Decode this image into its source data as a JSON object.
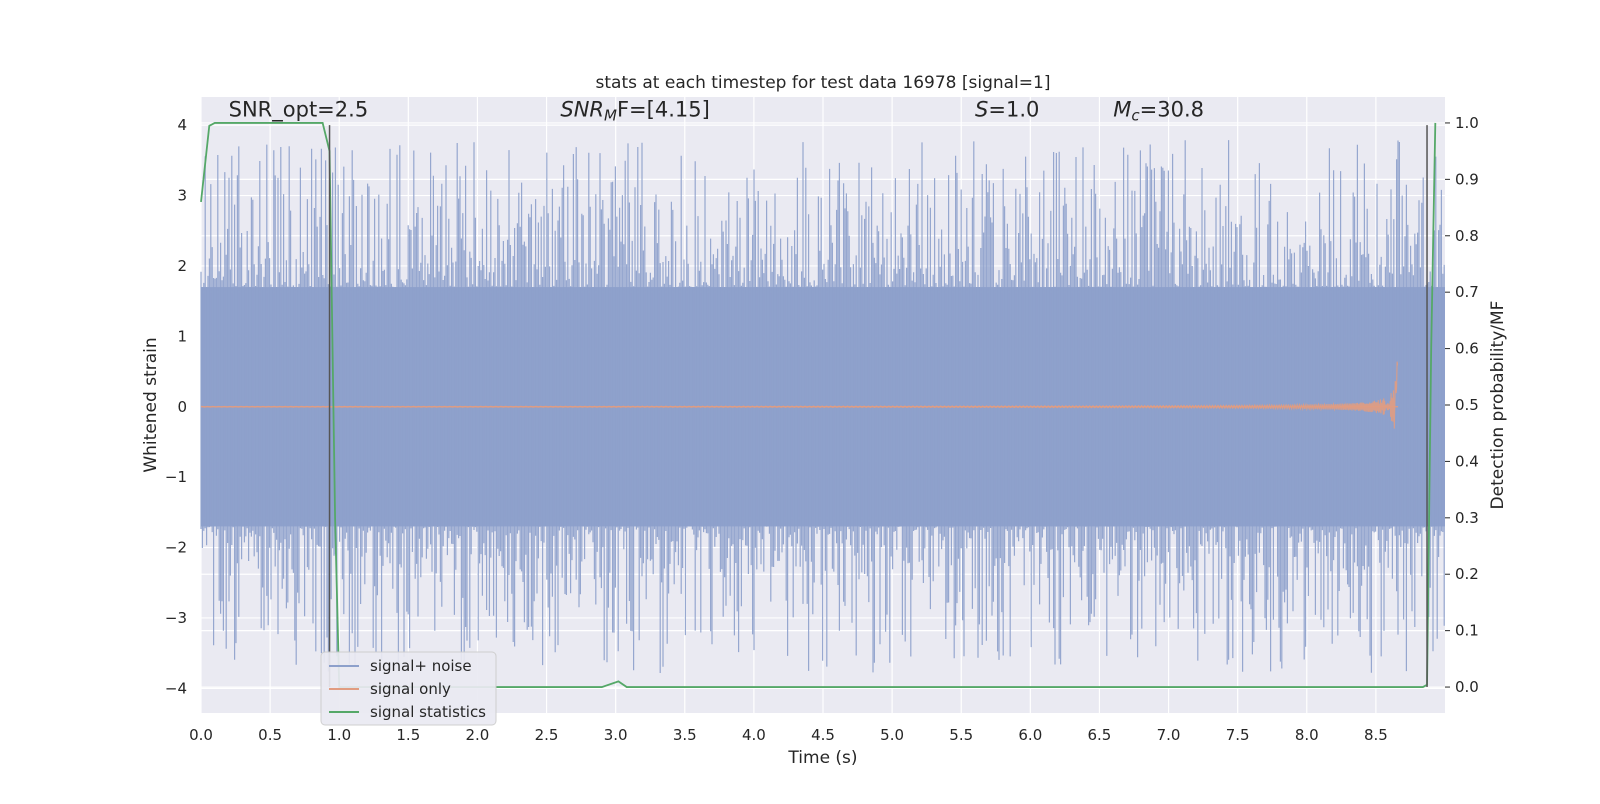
{
  "chart_data": {
    "type": "line",
    "title": "stats at each timestep for test data 16978 [signal=1]",
    "xlabel": "Time (s)",
    "ylabel": "Whitened strain",
    "y2label": "Detection probability/MF",
    "xlim": [
      0.0,
      9.0
    ],
    "ylim": [
      -4.35,
      4.4
    ],
    "y2lim": [
      -0.046,
      1.046
    ],
    "x_ticks": [
      "0.0",
      "0.5",
      "1.0",
      "1.5",
      "2.0",
      "2.5",
      "3.0",
      "3.5",
      "4.0",
      "4.5",
      "5.0",
      "5.5",
      "6.0",
      "6.5",
      "7.0",
      "7.5",
      "8.0",
      "8.5"
    ],
    "y_ticks": [
      "−4",
      "−3",
      "−2",
      "−1",
      "0",
      "1",
      "2",
      "3",
      "4"
    ],
    "y2_ticks": [
      "0.0",
      "0.1",
      "0.2",
      "0.3",
      "0.4",
      "0.5",
      "0.6",
      "0.7",
      "0.8",
      "0.9",
      "1.0"
    ],
    "grid": true,
    "legend_position": "lower-left",
    "annotations": [
      {
        "id": "snr-opt",
        "text": "SNR_opt=2.5",
        "x": 0.2,
        "y": 4.12
      },
      {
        "id": "snr-mf",
        "text": "SNR",
        "sub": "M",
        "rest": "F=[4.15]",
        "italic": true,
        "x": 2.6,
        "y": 4.12
      },
      {
        "id": "s-stat",
        "text": "S",
        "rest": "=1.0",
        "italic": true,
        "x": 5.6,
        "y": 4.12
      },
      {
        "id": "mc",
        "text": "M",
        "sub": "c",
        "rest": "=30.8",
        "italic": true,
        "x": 6.6,
        "y": 4.12
      }
    ],
    "vertical_lines": [
      0.93,
      8.87
    ],
    "series": [
      {
        "name": "signal+ noise",
        "color": "#8da0cb",
        "kind": "dense-noise",
        "x_range": [
          0.0,
          9.0
        ],
        "typical_amplitude": 1.7,
        "max_amplitude": 3.8
      },
      {
        "name": "signal only",
        "color": "#e19c81",
        "kind": "chirp",
        "x_range": [
          0.0,
          8.66
        ],
        "peak_amplitude": 0.65
      },
      {
        "name": "signal statistics",
        "color": "#55a868",
        "axis": "right",
        "x": [
          0.0,
          0.06,
          0.1,
          0.15,
          0.5,
          0.88,
          0.93,
          0.97,
          1.0,
          1.05,
          1.5,
          2.0,
          2.5,
          2.9,
          3.02,
          3.08,
          3.5,
          4.0,
          5.0,
          6.0,
          7.0,
          8.0,
          8.5,
          8.84,
          8.87,
          8.9,
          8.93
        ],
        "values": [
          0.86,
          0.995,
          1.0,
          1.0,
          1.0,
          1.0,
          0.95,
          0.3,
          0.0,
          0.0,
          0.0,
          0.0,
          0.0,
          0.0,
          0.01,
          0.0,
          0.0,
          0.0,
          0.0,
          0.0,
          0.0,
          0.0,
          0.0,
          0.0,
          0.004,
          0.6,
          1.0
        ]
      }
    ]
  }
}
